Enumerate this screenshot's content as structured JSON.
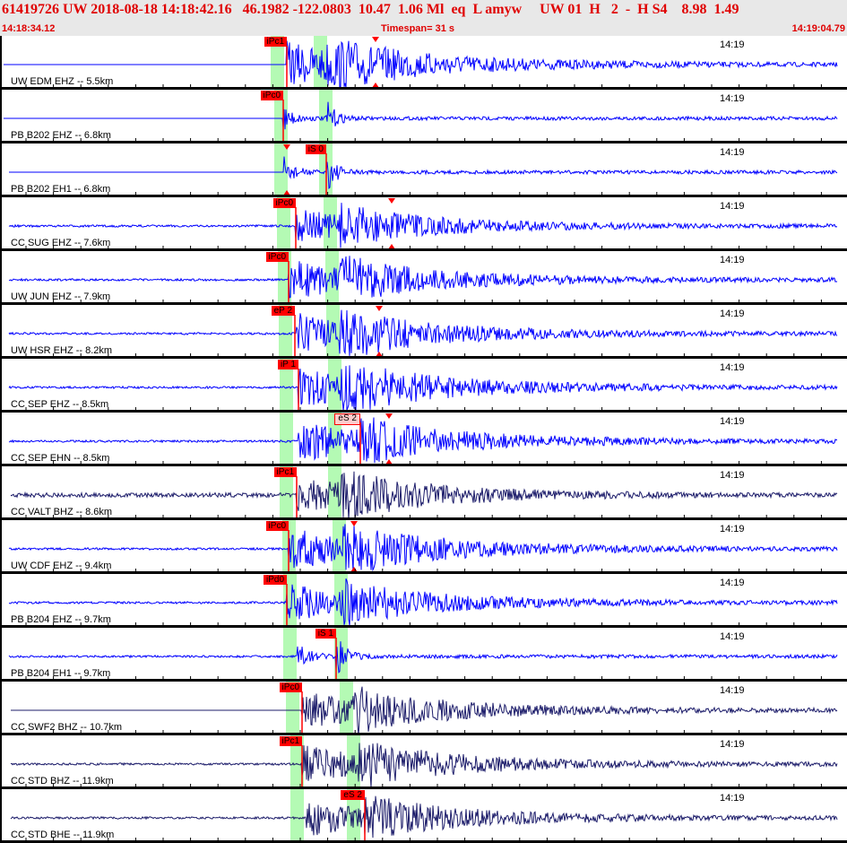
{
  "header": {
    "event_line": "61419726 UW 2018-08-18 14:18:42.16   46.1982 -122.0803  10.47  1.06 Ml  eq  L amyw     UW 01  H   2  -  H S4    8.98  1.49",
    "start_time": "14:18:34.12",
    "timespan": "Timespan=  31 s",
    "end_time": "14:19:04.79"
  },
  "colors": {
    "trace_blue": "#0000ff",
    "trace_navy": "#1c1c6a",
    "pick": "#ff0000",
    "window": "#b4fab4",
    "header_text": "#e00000"
  },
  "traces": [
    {
      "label": "UW EDM EHZ -- 5.5km",
      "time_label": "14:19",
      "pick": "iPc1",
      "color": "blue"
    },
    {
      "label": "PB B202 EHZ -- 6.8km",
      "time_label": "14:19",
      "pick": "iPc0",
      "color": "blue"
    },
    {
      "label": "PB B202 EH1 -- 6.8km",
      "time_label": "14:19",
      "pick": "iS 0",
      "color": "blue"
    },
    {
      "label": "CC SUG EHZ -- 7.6km",
      "time_label": "14:19",
      "pick": "iPc0",
      "color": "blue"
    },
    {
      "label": "UW JUN EHZ -- 7.9km",
      "time_label": "14:19",
      "pick": "iPc0",
      "color": "blue"
    },
    {
      "label": "UW HSR EHZ -- 8.2km",
      "time_label": "14:19",
      "pick": "eP 2",
      "color": "blue"
    },
    {
      "label": "CC SEP EHZ -- 8.5km",
      "time_label": "14:19",
      "pick": "iP 1",
      "color": "blue"
    },
    {
      "label": "CC SEP EHN -- 8.5km",
      "time_label": "14:19",
      "pick": "eS 2",
      "color": "blue",
      "pick_style": "pale"
    },
    {
      "label": "CC VALT BHZ -- 8.6km",
      "time_label": "14:19",
      "pick": "iPc1",
      "color": "navy"
    },
    {
      "label": "UW CDF EHZ -- 9.4km",
      "time_label": "14:19",
      "pick": "iPc0",
      "color": "blue"
    },
    {
      "label": "PB B204 EHZ -- 9.7km",
      "time_label": "14:19",
      "pick": "iPd0",
      "color": "blue"
    },
    {
      "label": "PB B204 EH1 -- 9.7km",
      "time_label": "14:19",
      "pick": "iS 1",
      "color": "blue"
    },
    {
      "label": "CC SWF2 BHZ -- 10.7km",
      "time_label": "14:19",
      "pick": "iPc0",
      "color": "navy"
    },
    {
      "label": "CC STD BHZ -- 11.9km",
      "time_label": "14:19",
      "pick": "iPc1",
      "color": "navy"
    },
    {
      "label": "CC STD BHE -- 11.9km",
      "time_label": "14:19",
      "pick": "eS 2",
      "color": "navy"
    }
  ]
}
